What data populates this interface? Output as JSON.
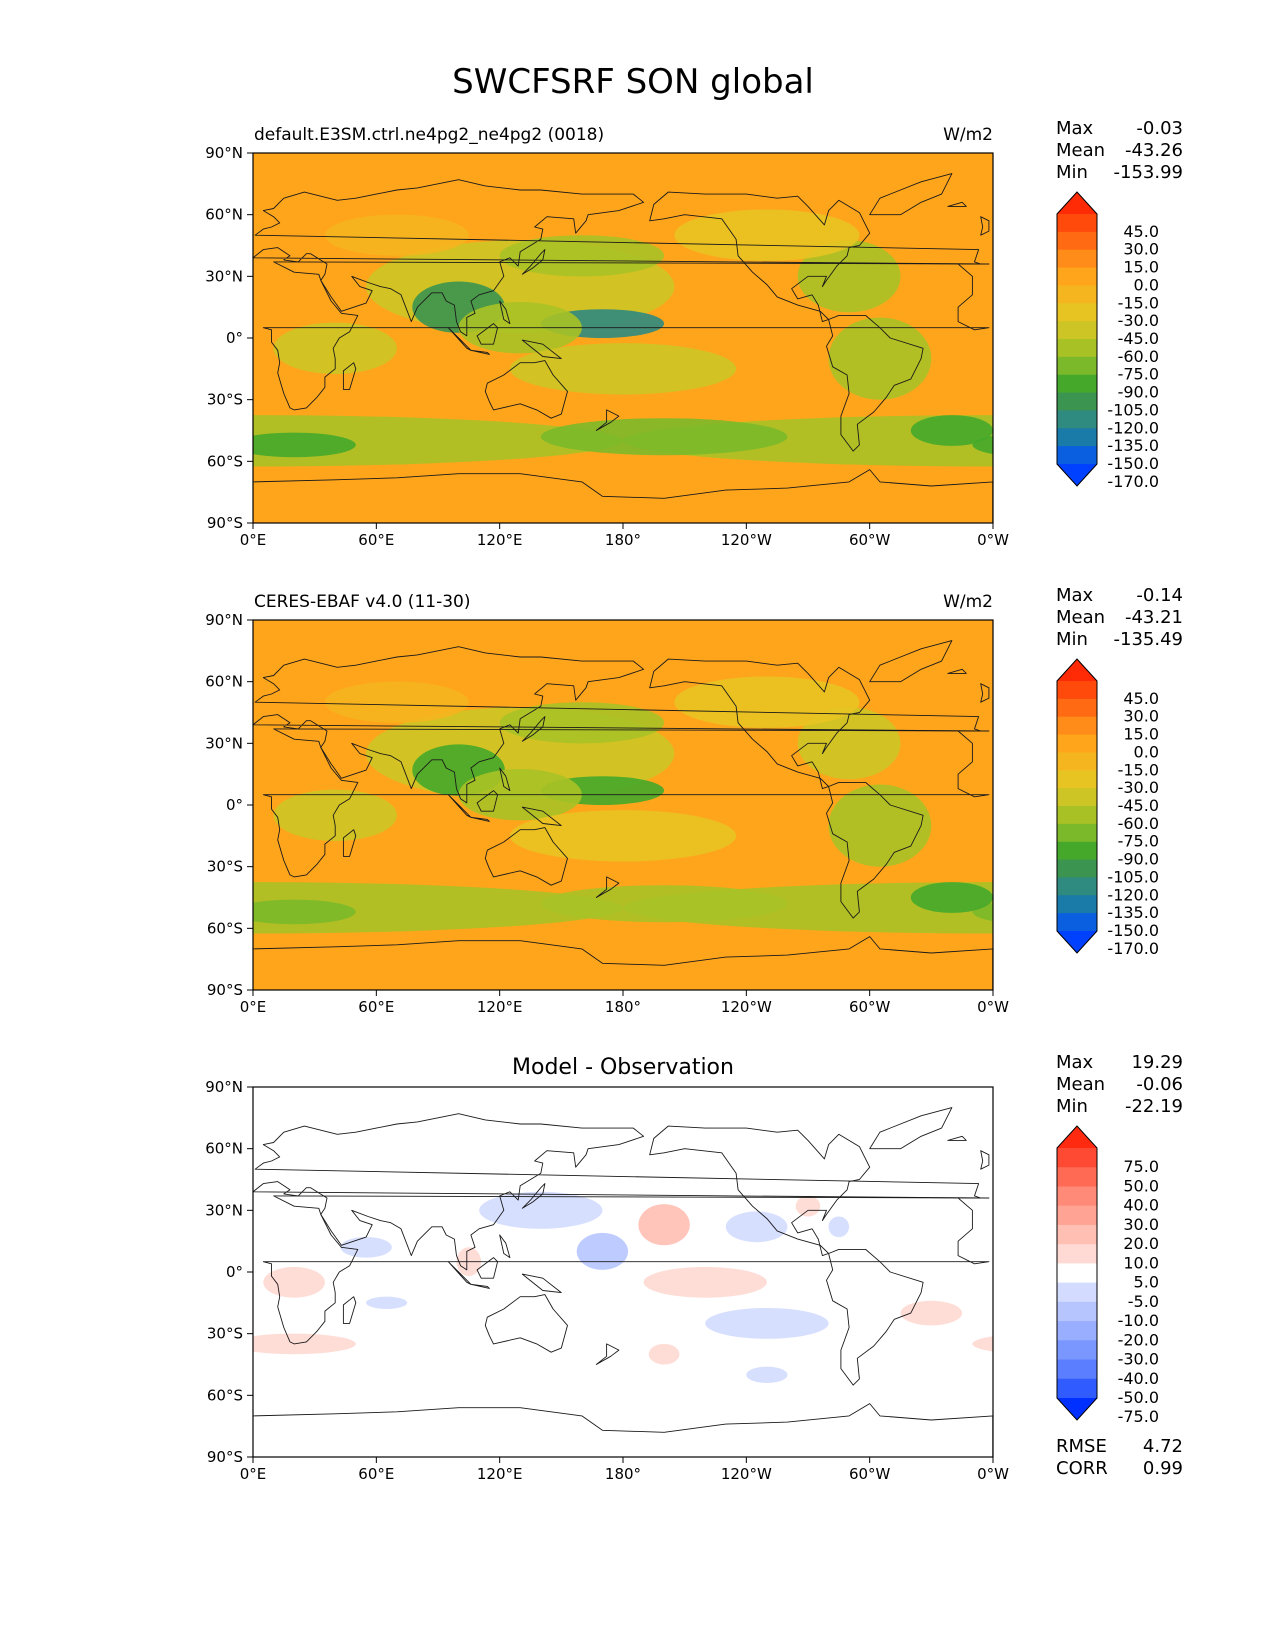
{
  "figure": {
    "title": "SWCFSRF SON global"
  },
  "colors": {
    "abs_levels": [
      "#0040ff",
      "#0a5fe0",
      "#1a7aa8",
      "#2f8a80",
      "#3b9550",
      "#45a82a",
      "#7cb92a",
      "#a8c226",
      "#cdc525",
      "#e8c422",
      "#f5b51e",
      "#ffa51c",
      "#ff8c18",
      "#ff6a12",
      "#ff4a0c",
      "#ff2a06"
    ],
    "diff_levels": [
      "#0030ff",
      "#2f5bff",
      "#5a7eff",
      "#7a96ff",
      "#9aaeff",
      "#b7c5ff",
      "#d3dcff",
      "#ffffff",
      "#ffd9d3",
      "#ffbfb3",
      "#ffa394",
      "#ff8a78",
      "#ff6a55",
      "#ff4a33",
      "#ff2a10"
    ],
    "coastline": "#1a1a1a"
  },
  "panels": [
    {
      "id": "model",
      "left_title": "default.E3SM.ctrl.ne4pg2_ne4pg2 (0018)",
      "center_title": "",
      "units": "W/m2",
      "stats": [
        {
          "label": "Max",
          "value": "-0.03"
        },
        {
          "label": "Mean",
          "value": "-43.26"
        },
        {
          "label": "Min",
          "value": "-153.99"
        }
      ],
      "colorbar_ticks": [
        "45.0",
        "30.0",
        "15.0",
        "0.0",
        "-15.0",
        "-30.0",
        "-45.0",
        "-60.0",
        "-75.0",
        "-90.0",
        "-105.0",
        "-120.0",
        "-135.0",
        "-150.0",
        "-170.0"
      ],
      "extra": []
    },
    {
      "id": "obs",
      "left_title": "CERES-EBAF v4.0 (11-30)",
      "center_title": "",
      "units": "W/m2",
      "stats": [
        {
          "label": "Max",
          "value": "-0.14"
        },
        {
          "label": "Mean",
          "value": "-43.21"
        },
        {
          "label": "Min",
          "value": "-135.49"
        }
      ],
      "colorbar_ticks": [
        "45.0",
        "30.0",
        "15.0",
        "0.0",
        "-15.0",
        "-30.0",
        "-45.0",
        "-60.0",
        "-75.0",
        "-90.0",
        "-105.0",
        "-120.0",
        "-135.0",
        "-150.0",
        "-170.0"
      ],
      "extra": []
    },
    {
      "id": "diff",
      "left_title": "",
      "center_title": "Model - Observation",
      "units": "",
      "stats": [
        {
          "label": "Max",
          "value": "19.29"
        },
        {
          "label": "Mean",
          "value": "-0.06"
        },
        {
          "label": "Min",
          "value": "-22.19"
        }
      ],
      "colorbar_ticks": [
        "75.0",
        "50.0",
        "40.0",
        "30.0",
        "20.0",
        "10.0",
        "5.0",
        "-5.0",
        "-10.0",
        "-20.0",
        "-30.0",
        "-40.0",
        "-50.0",
        "-75.0"
      ],
      "extra": [
        {
          "label": "RMSE",
          "value": "4.72"
        },
        {
          "label": "CORR",
          "value": "0.99"
        }
      ]
    }
  ],
  "chart_data": [
    {
      "type": "heatmap",
      "title": "default.E3SM.ctrl.ne4pg2_ne4pg2 (0018)",
      "units": "W/m2",
      "projection": "PlateCarree",
      "xlim": [
        0,
        360
      ],
      "ylim": [
        -90,
        90
      ],
      "x_ticks": [
        "0°E",
        "60°E",
        "120°E",
        "180°",
        "120°W",
        "60°W",
        "0°W"
      ],
      "y_ticks": [
        "90°N",
        "60°N",
        "30°N",
        "0°",
        "30°S",
        "60°S",
        "90°S"
      ],
      "levels": [
        -170,
        -150,
        -135,
        -120,
        -105,
        -90,
        -75,
        -60,
        -45,
        -30,
        -15,
        0,
        15,
        30,
        45
      ],
      "stats": {
        "max": -0.03,
        "mean": -43.26,
        "min": -153.99
      },
      "background": -10,
      "features": [
        {
          "lon": 0,
          "lat": -50,
          "w": 360,
          "h": 25,
          "v": -70
        },
        {
          "lon": 20,
          "lat": -52,
          "w": 60,
          "h": 12,
          "v": -95
        },
        {
          "lon": 200,
          "lat": -48,
          "w": 120,
          "h": 18,
          "v": -90
        },
        {
          "lon": 340,
          "lat": -45,
          "w": 40,
          "h": 15,
          "v": -100
        },
        {
          "lon": 130,
          "lat": 25,
          "w": 150,
          "h": 45,
          "v": -55
        },
        {
          "lon": 160,
          "lat": 40,
          "w": 80,
          "h": 20,
          "v": -75
        },
        {
          "lon": 100,
          "lat": 15,
          "w": 45,
          "h": 25,
          "v": -115
        },
        {
          "lon": 170,
          "lat": 7,
          "w": 60,
          "h": 14,
          "v": -125
        },
        {
          "lon": 130,
          "lat": 5,
          "w": 60,
          "h": 25,
          "v": -75
        },
        {
          "lon": 180,
          "lat": -15,
          "w": 110,
          "h": 25,
          "v": -50
        },
        {
          "lon": 290,
          "lat": 30,
          "w": 50,
          "h": 35,
          "v": -70
        },
        {
          "lon": 305,
          "lat": -10,
          "w": 50,
          "h": 40,
          "v": -70
        },
        {
          "lon": 40,
          "lat": -5,
          "w": 60,
          "h": 25,
          "v": -55
        },
        {
          "lon": 250,
          "lat": 50,
          "w": 90,
          "h": 25,
          "v": -45
        },
        {
          "lon": 70,
          "lat": 50,
          "w": 70,
          "h": 20,
          "v": -30
        }
      ]
    },
    {
      "type": "heatmap",
      "title": "CERES-EBAF v4.0 (11-30)",
      "units": "W/m2",
      "projection": "PlateCarree",
      "xlim": [
        0,
        360
      ],
      "ylim": [
        -90,
        90
      ],
      "x_ticks": [
        "0°E",
        "60°E",
        "120°E",
        "180°",
        "120°W",
        "60°W",
        "0°W"
      ],
      "y_ticks": [
        "90°N",
        "60°N",
        "30°N",
        "0°",
        "30°S",
        "60°S",
        "90°S"
      ],
      "levels": [
        -170,
        -150,
        -135,
        -120,
        -105,
        -90,
        -75,
        -60,
        -45,
        -30,
        -15,
        0,
        15,
        30,
        45
      ],
      "stats": {
        "max": -0.14,
        "mean": -43.21,
        "min": -135.49
      },
      "background": -10,
      "features": [
        {
          "lon": 0,
          "lat": -50,
          "w": 360,
          "h": 25,
          "v": -70
        },
        {
          "lon": 20,
          "lat": -52,
          "w": 60,
          "h": 12,
          "v": -85
        },
        {
          "lon": 200,
          "lat": -48,
          "w": 120,
          "h": 18,
          "v": -75
        },
        {
          "lon": 340,
          "lat": -45,
          "w": 40,
          "h": 15,
          "v": -95
        },
        {
          "lon": 130,
          "lat": 25,
          "w": 150,
          "h": 45,
          "v": -50
        },
        {
          "lon": 160,
          "lat": 40,
          "w": 80,
          "h": 20,
          "v": -65
        },
        {
          "lon": 100,
          "lat": 17,
          "w": 45,
          "h": 25,
          "v": -105
        },
        {
          "lon": 170,
          "lat": 7,
          "w": 60,
          "h": 14,
          "v": -95
        },
        {
          "lon": 130,
          "lat": 5,
          "w": 60,
          "h": 25,
          "v": -70
        },
        {
          "lon": 180,
          "lat": -15,
          "w": 110,
          "h": 25,
          "v": -40
        },
        {
          "lon": 290,
          "lat": 30,
          "w": 50,
          "h": 35,
          "v": -55
        },
        {
          "lon": 305,
          "lat": -10,
          "w": 50,
          "h": 40,
          "v": -65
        },
        {
          "lon": 40,
          "lat": -5,
          "w": 60,
          "h": 25,
          "v": -50
        },
        {
          "lon": 250,
          "lat": 50,
          "w": 90,
          "h": 25,
          "v": -40
        },
        {
          "lon": 70,
          "lat": 50,
          "w": 70,
          "h": 20,
          "v": -25
        }
      ]
    },
    {
      "type": "heatmap",
      "title": "Model - Observation",
      "projection": "PlateCarree",
      "xlim": [
        0,
        360
      ],
      "ylim": [
        -90,
        90
      ],
      "x_ticks": [
        "0°E",
        "60°E",
        "120°E",
        "180°",
        "120°W",
        "60°W",
        "0°W"
      ],
      "y_ticks": [
        "90°N",
        "60°N",
        "30°N",
        "0°",
        "30°S",
        "60°S",
        "90°S"
      ],
      "levels": [
        -75,
        -50,
        -40,
        -30,
        -20,
        -10,
        -5,
        5,
        10,
        20,
        30,
        40,
        50,
        75
      ],
      "stats": {
        "max": 19.29,
        "mean": -0.06,
        "min": -22.19,
        "rmse": 4.72,
        "corr": 0.99
      },
      "background": 0,
      "features": [
        {
          "lon": 140,
          "lat": 30,
          "w": 60,
          "h": 18,
          "v": -8
        },
        {
          "lon": 170,
          "lat": 10,
          "w": 25,
          "h": 18,
          "v": -14
        },
        {
          "lon": 200,
          "lat": 23,
          "w": 25,
          "h": 20,
          "v": 15
        },
        {
          "lon": 245,
          "lat": 22,
          "w": 30,
          "h": 15,
          "v": -8
        },
        {
          "lon": 220,
          "lat": -5,
          "w": 60,
          "h": 15,
          "v": 9
        },
        {
          "lon": 250,
          "lat": -25,
          "w": 60,
          "h": 15,
          "v": -8
        },
        {
          "lon": 20,
          "lat": -35,
          "w": 60,
          "h": 10,
          "v": 7
        },
        {
          "lon": 20,
          "lat": -5,
          "w": 30,
          "h": 15,
          "v": 7
        },
        {
          "lon": 330,
          "lat": -20,
          "w": 30,
          "h": 12,
          "v": 7
        },
        {
          "lon": 200,
          "lat": -40,
          "w": 15,
          "h": 10,
          "v": 7
        },
        {
          "lon": 270,
          "lat": 32,
          "w": 12,
          "h": 10,
          "v": 7
        },
        {
          "lon": 55,
          "lat": 12,
          "w": 25,
          "h": 10,
          "v": -8
        },
        {
          "lon": 65,
          "lat": -15,
          "w": 20,
          "h": 6,
          "v": -8
        },
        {
          "lon": 250,
          "lat": -50,
          "w": 20,
          "h": 8,
          "v": -8
        },
        {
          "lon": 285,
          "lat": 22,
          "w": 10,
          "h": 10,
          "v": -8
        },
        {
          "lon": 105,
          "lat": 5,
          "w": 12,
          "h": 14,
          "v": 9
        }
      ]
    }
  ]
}
